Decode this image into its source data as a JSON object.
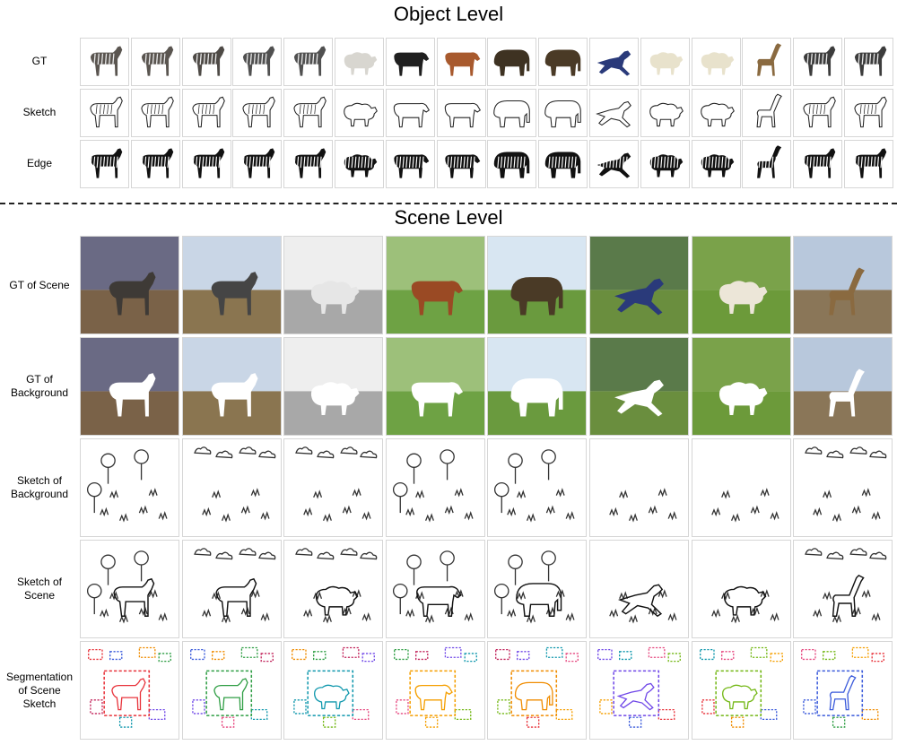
{
  "object_level": {
    "title": "Object Level",
    "rows": [
      {
        "id": "gt",
        "label": "GT",
        "kind": "photo"
      },
      {
        "id": "sketch",
        "label": "Sketch",
        "kind": "sketch"
      },
      {
        "id": "edge",
        "label": "Edge",
        "kind": "edge"
      }
    ],
    "columns": [
      {
        "animal": "zebra",
        "color": "#5a5550"
      },
      {
        "animal": "zebra",
        "color": "#5a5550"
      },
      {
        "animal": "zebra",
        "color": "#4e4a46"
      },
      {
        "animal": "zebra",
        "color": "#505050"
      },
      {
        "animal": "zebra",
        "color": "#505050"
      },
      {
        "animal": "sheep",
        "color": "#d8d6d0"
      },
      {
        "animal": "cow",
        "color": "#1f1f1f"
      },
      {
        "animal": "cow",
        "color": "#a85a2e"
      },
      {
        "animal": "elephant",
        "color": "#3e3222"
      },
      {
        "animal": "elephant",
        "color": "#4a3a26"
      },
      {
        "animal": "dog",
        "color": "#2a3a7a"
      },
      {
        "animal": "sheep",
        "color": "#e8e2cc"
      },
      {
        "animal": "sheep",
        "color": "#e8e2cc"
      },
      {
        "animal": "giraffe",
        "color": "#8a6a40"
      },
      {
        "animal": "zebra",
        "color": "#3c3c3c"
      },
      {
        "animal": "zebra",
        "color": "#3c3c3c"
      }
    ]
  },
  "scene_level": {
    "title": "Scene Level",
    "rows": [
      {
        "id": "gt_scene",
        "label": "GT of Scene"
      },
      {
        "id": "gt_background",
        "label": "GT of\nBackground"
      },
      {
        "id": "sketch_background",
        "label": "Sketch of\nBackground"
      },
      {
        "id": "sketch_scene",
        "label": "Sketch of\nScene"
      },
      {
        "id": "segmentation",
        "label": "Segmentation\nof Scene\nSketch"
      }
    ],
    "scenes": [
      {
        "sky": "#6a6a84",
        "ground": "#7a6248",
        "animal": "zebra",
        "animal_color": "#3e3a36",
        "bg_icons": "trees"
      },
      {
        "sky": "#c9d6e6",
        "ground": "#8a7550",
        "animal": "zebra",
        "animal_color": "#454545",
        "bg_icons": "clouds"
      },
      {
        "sky": "#eeeeee",
        "ground": "#a8a8a8",
        "animal": "sheep",
        "animal_color": "#e6e6e6",
        "bg_icons": "clouds"
      },
      {
        "sky": "#9dc07a",
        "ground": "#6ea244",
        "animal": "cow",
        "animal_color": "#9a4a24",
        "bg_icons": "trees"
      },
      {
        "sky": "#d8e6f2",
        "ground": "#6a9a3e",
        "animal": "elephant",
        "animal_color": "#4a3a26",
        "bg_icons": "trees"
      },
      {
        "sky": "#5a7a4a",
        "ground": "#6a8e3e",
        "animal": "dog",
        "animal_color": "#2a3a7a",
        "bg_icons": "grass"
      },
      {
        "sky": "#7aa24a",
        "ground": "#6c9a3a",
        "animal": "sheep",
        "animal_color": "#ece6d8",
        "bg_icons": "grass"
      },
      {
        "sky": "#b8c8dc",
        "ground": "#8a7658",
        "animal": "giraffe",
        "animal_color": "#8a6a40",
        "bg_icons": "clouds"
      }
    ],
    "segment_colors": [
      "#e8333b",
      "#3b5bdb",
      "#f08c00",
      "#2f9e44",
      "#c2255c",
      "#7048e8",
      "#1098ad",
      "#e64980",
      "#74b816",
      "#f59f00"
    ]
  }
}
